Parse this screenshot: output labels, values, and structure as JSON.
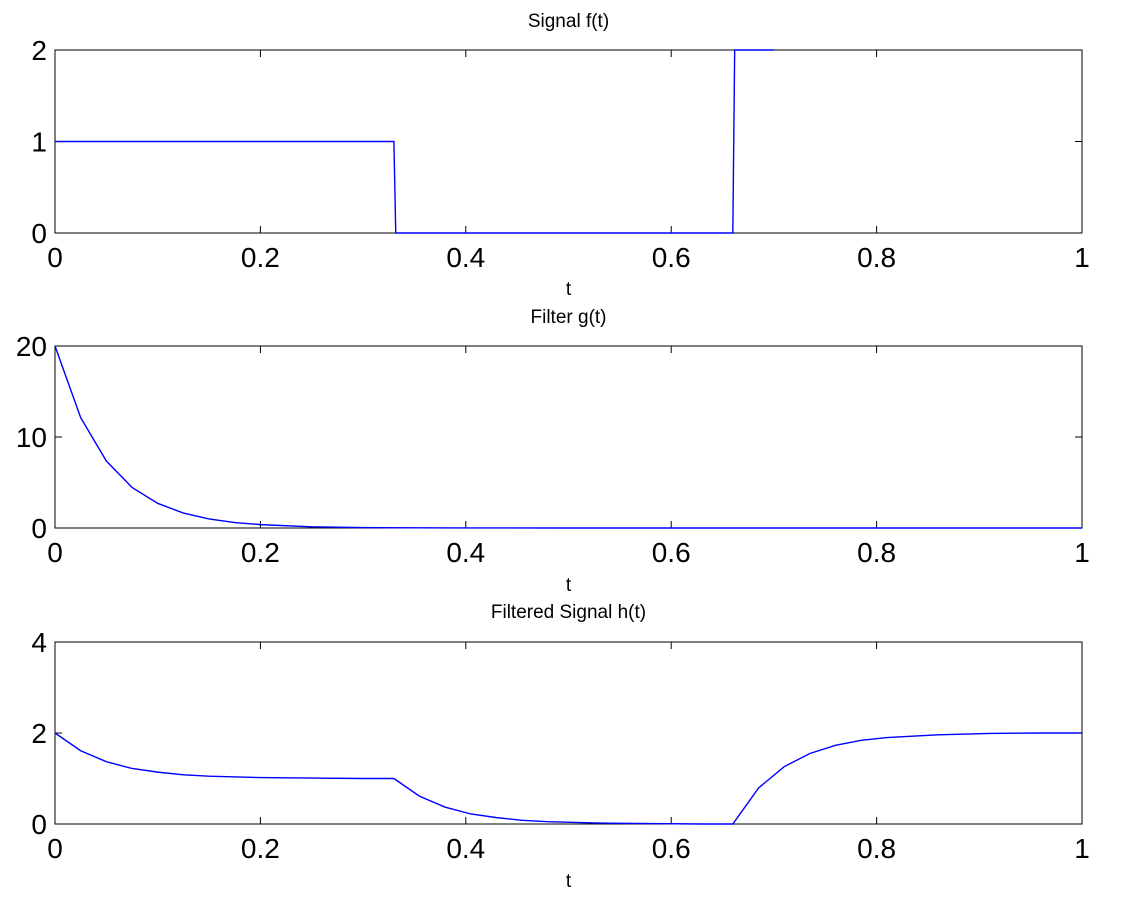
{
  "chart_data": [
    {
      "type": "line",
      "title": "Signal f(t)",
      "xlabel": "t",
      "ylabel": "",
      "xlim": [
        0,
        1
      ],
      "ylim": [
        0,
        2
      ],
      "xticks": [
        0,
        0.2,
        0.4,
        0.6,
        0.8,
        1
      ],
      "xtick_labels": [
        "0",
        "0.2",
        "0.4",
        "0.6",
        "0.8",
        "1"
      ],
      "yticks": [
        0,
        1,
        2
      ],
      "ytick_labels": [
        "0",
        "1",
        "2"
      ],
      "grid": false,
      "color": "#0000ff",
      "series": [
        {
          "x": [
            0,
            0.33,
            0.3318,
            0.66,
            0.6618,
            0.7
          ],
          "y": [
            1,
            1,
            0,
            0,
            2,
            2
          ]
        }
      ]
    },
    {
      "type": "line",
      "title": "Filter g(t)",
      "xlabel": "t",
      "ylabel": "",
      "xlim": [
        0,
        1
      ],
      "ylim": [
        0,
        20
      ],
      "xticks": [
        0,
        0.2,
        0.4,
        0.6,
        0.8,
        1
      ],
      "xtick_labels": [
        "0",
        "0.2",
        "0.4",
        "0.6",
        "0.8",
        "1"
      ],
      "yticks": [
        0,
        10,
        20
      ],
      "ytick_labels": [
        "0",
        "10",
        "20"
      ],
      "grid": false,
      "color": "#0000ff",
      "series": [
        {
          "x": [
            0,
            0.025,
            0.05,
            0.075,
            0.1,
            0.125,
            0.15,
            0.175,
            0.2,
            0.25,
            0.3,
            0.35,
            0.4,
            0.5,
            0.6,
            0.7,
            0.8,
            0.9,
            1.0
          ],
          "y": [
            20,
            12.13,
            7.36,
            4.46,
            2.71,
            1.64,
            1.0,
            0.6,
            0.37,
            0.13,
            0.05,
            0.02,
            0.01,
            0,
            0,
            0,
            0,
            0,
            0
          ]
        }
      ]
    },
    {
      "type": "line",
      "title": "Filtered Signal h(t)",
      "xlabel": "t",
      "ylabel": "",
      "xlim": [
        0,
        1
      ],
      "ylim": [
        0,
        4
      ],
      "xticks": [
        0,
        0.2,
        0.4,
        0.6,
        0.8,
        1
      ],
      "xtick_labels": [
        "0",
        "0.2",
        "0.4",
        "0.6",
        "0.8",
        "1"
      ],
      "yticks": [
        0,
        2,
        4
      ],
      "ytick_labels": [
        "0",
        "2",
        "4"
      ],
      "grid": false,
      "color": "#0000ff",
      "series": [
        {
          "x": [
            0,
            0.025,
            0.05,
            0.075,
            0.1,
            0.125,
            0.15,
            0.2,
            0.25,
            0.3,
            0.33,
            0.355,
            0.38,
            0.405,
            0.43,
            0.455,
            0.48,
            0.53,
            0.58,
            0.63,
            0.66,
            0.685,
            0.71,
            0.735,
            0.76,
            0.785,
            0.81,
            0.86,
            0.91,
            0.96,
            1.0
          ],
          "y": [
            2.0,
            1.61,
            1.37,
            1.22,
            1.14,
            1.08,
            1.05,
            1.02,
            1.01,
            1.0,
            1.0,
            0.61,
            0.37,
            0.22,
            0.14,
            0.08,
            0.05,
            0.02,
            0.01,
            0.0,
            0.0,
            0.79,
            1.26,
            1.55,
            1.73,
            1.84,
            1.9,
            1.96,
            1.99,
            2.0,
            2.0
          ]
        }
      ]
    }
  ]
}
